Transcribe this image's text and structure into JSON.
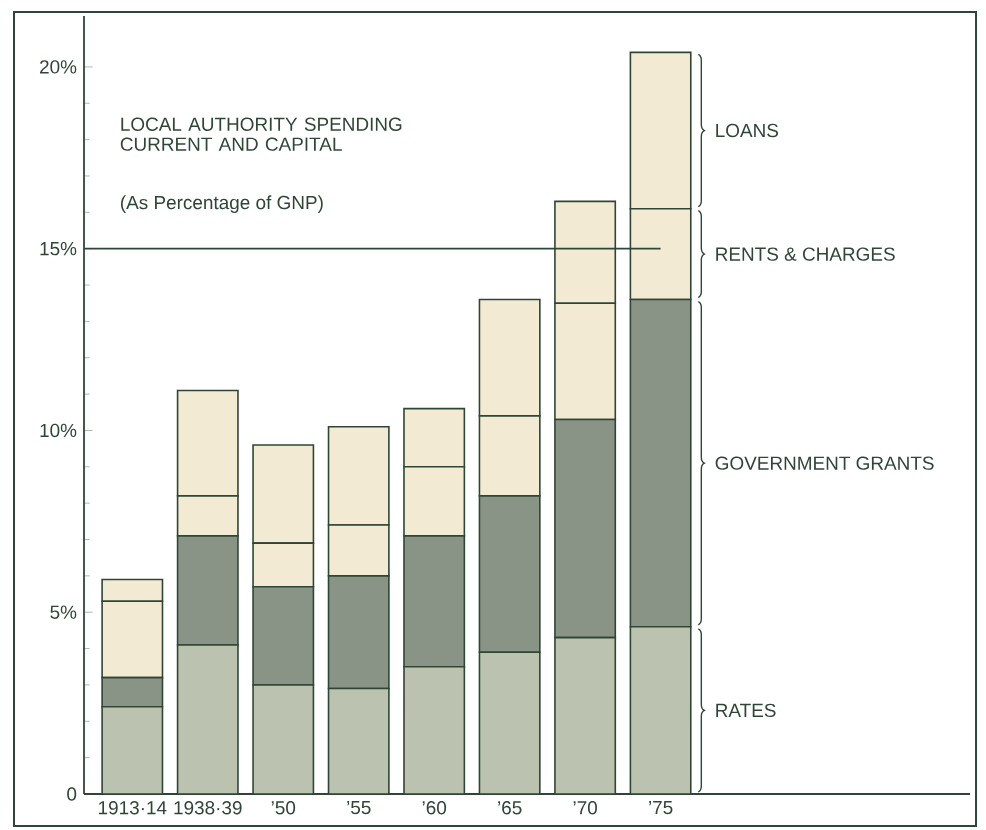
{
  "chart_data": {
    "type": "bar",
    "stacked": true,
    "title": "LOCAL AUTHORITY SPENDING CURRENT AND CAPITAL",
    "subtitle": "(As Percentage of GNP)",
    "categories": [
      "1913·14",
      "1938·39",
      "’50",
      "’55",
      "’60",
      "’65",
      "’70",
      "’75"
    ],
    "series": [
      {
        "name": "RATES",
        "color": "#bcc2b0",
        "values": [
          2.4,
          4.1,
          3.0,
          2.9,
          3.5,
          3.9,
          4.3,
          4.6
        ]
      },
      {
        "name": "GOVERNMENT GRANTS",
        "color": "#8a9486",
        "values": [
          0.8,
          3.0,
          2.7,
          3.1,
          3.6,
          4.3,
          6.0,
          9.0
        ]
      },
      {
        "name": "RENTS & CHARGES",
        "color": "#f2ead3",
        "values": [
          2.1,
          1.1,
          1.2,
          1.4,
          1.9,
          2.2,
          3.2,
          2.5
        ]
      },
      {
        "name": "LOANS",
        "color": "#f2ead3",
        "values": [
          0.6,
          2.9,
          2.7,
          2.7,
          1.6,
          3.2,
          2.8,
          4.3
        ]
      }
    ],
    "legend": "right",
    "ylim": [
      0,
      21.4
    ],
    "yticks": [
      0,
      {
        "value": 5,
        "label": "5%"
      },
      {
        "value": 10,
        "label": "10%"
      },
      {
        "value": 15,
        "label": "15%"
      },
      {
        "value": 20,
        "label": "20%"
      }
    ],
    "ref_lines": [
      {
        "axis": "y",
        "value": 15,
        "color": "#2f4636"
      }
    ]
  }
}
